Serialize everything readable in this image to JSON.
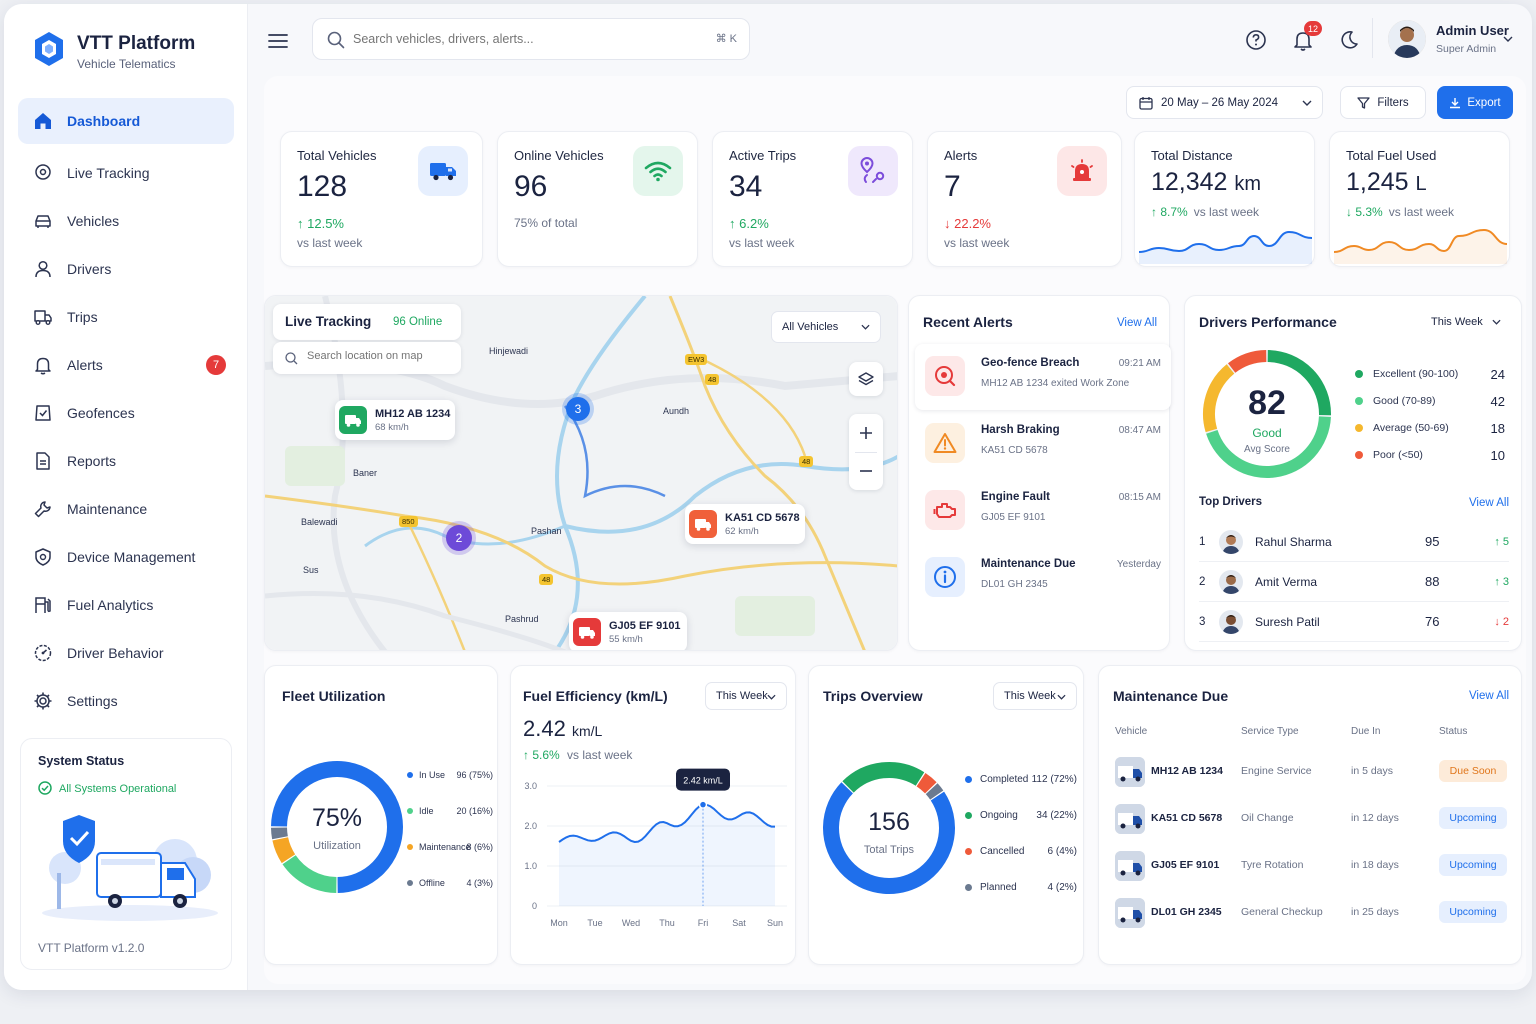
{
  "brand": {
    "name": "VTT Platform",
    "tagline": "Vehicle Telematics",
    "version": "VTT Platform v1.2.0"
  },
  "colors": {
    "primary": "#1559d6",
    "success": "#1fa861",
    "danger": "#e53a3a",
    "warning": "#f59e0b"
  },
  "nav": [
    {
      "label": "Dashboard",
      "icon": "home-icon",
      "active": true
    },
    {
      "label": "Live Tracking",
      "icon": "location-pin-icon"
    },
    {
      "label": "Vehicles",
      "icon": "car-icon"
    },
    {
      "label": "Drivers",
      "icon": "user-icon"
    },
    {
      "label": "Trips",
      "icon": "map-icon"
    },
    {
      "label": "Alerts",
      "icon": "bell-icon",
      "badge": "7"
    },
    {
      "label": "Geofences",
      "icon": "geofence-icon"
    },
    {
      "label": "Reports",
      "icon": "document-icon"
    },
    {
      "label": "Maintenance",
      "icon": "wrench-icon"
    },
    {
      "label": "Device Management",
      "icon": "shield-icon"
    },
    {
      "label": "Fuel Analytics",
      "icon": "fuel-icon"
    },
    {
      "label": "Driver Behavior",
      "icon": "gauge-icon"
    },
    {
      "label": "Settings",
      "icon": "gear-icon"
    }
  ],
  "system_status": {
    "title": "System Status",
    "status": "All Systems Operational"
  },
  "header": {
    "search_placeholder": "Search vehicles, drivers, alerts...",
    "shortcut": "⌘ K",
    "notifications": "12",
    "user_name": "Admin User",
    "user_role": "Super Admin"
  },
  "toolbar": {
    "date_range": "20 May – 26 May 2024",
    "filters": "Filters",
    "export": "Export"
  },
  "stats": [
    {
      "label": "Total Vehicles",
      "value": "128",
      "change": "12.5%",
      "sub": "vs last week",
      "dir": "up",
      "icon": "truck-icon"
    },
    {
      "label": "Online Vehicles",
      "value": "96",
      "sub": "75% of total",
      "icon": "wifi-icon"
    },
    {
      "label": "Active Trips",
      "value": "34",
      "change": "6.2%",
      "sub": "vs last week",
      "dir": "up",
      "icon": "route-icon"
    },
    {
      "label": "Alerts",
      "value": "7",
      "change": "22.2%",
      "sub": "vs last week",
      "dir": "down",
      "icon": "siren-icon"
    },
    {
      "label": "Total Distance",
      "value": "12,342",
      "unit": "km",
      "change": "8.7%",
      "sub": "vs last week",
      "dir": "up"
    },
    {
      "label": "Total Fuel Used",
      "value": "1,245",
      "unit": "L",
      "change": "5.3%",
      "sub": "vs last week",
      "dir": "down"
    }
  ],
  "live_tracking": {
    "title": "Live Tracking",
    "online": "96 Online",
    "search_placeholder": "Search location on map",
    "filter": "All Vehicles",
    "places": [
      "Hinjewadi",
      "Aundh",
      "Baner",
      "Balewadi",
      "Pashan",
      "Sus",
      "Pashrud"
    ],
    "road_labels": [
      "EW3",
      "48",
      "48",
      "850",
      "48",
      "48"
    ],
    "clusters": [
      "3",
      "2"
    ],
    "vehicles": [
      {
        "plate": "MH12 AB 1234",
        "speed": "68 km/h",
        "color": "#1fa861"
      },
      {
        "plate": "KA51 CD 5678",
        "speed": "62 km/h",
        "color": "#f0603a"
      },
      {
        "plate": "GJ05 EF 9101",
        "speed": "55 km/h",
        "color": "#e53a3a"
      }
    ]
  },
  "recent_alerts": {
    "title": "Recent Alerts",
    "view_all": "View All",
    "items": [
      {
        "title": "Geo-fence Breach",
        "sub": "MH12 AB 1234 exited Work Zone",
        "time": "09:21 AM",
        "icon": "geofence-alert-icon"
      },
      {
        "title": "Harsh Braking",
        "sub": "KA51 CD 5678",
        "time": "08:47 AM",
        "icon": "warning-icon"
      },
      {
        "title": "Engine Fault",
        "sub": "GJ05 EF 9101",
        "time": "08:15 AM",
        "icon": "engine-icon"
      },
      {
        "title": "Maintenance Due",
        "sub": "DL01 GH 2345",
        "time": "Yesterday",
        "icon": "info-icon"
      }
    ]
  },
  "drivers_performance": {
    "title": "Drivers Performance",
    "period": "This Week",
    "score": "82",
    "score_label": "Good",
    "score_sub": "Avg Score",
    "legend": [
      {
        "label": "Excellent (90-100)",
        "value": "24",
        "color": "#1fa861"
      },
      {
        "label": "Good (70-89)",
        "value": "42",
        "color": "#4fd18b"
      },
      {
        "label": "Average (50-69)",
        "value": "18",
        "color": "#f5b82e"
      },
      {
        "label": "Poor (<50)",
        "value": "10",
        "color": "#ef5a3a"
      }
    ],
    "top_title": "Top Drivers",
    "view_all": "View All",
    "top": [
      {
        "rank": "1",
        "name": "Rahul Sharma",
        "score": "95",
        "delta": "5",
        "dir": "up"
      },
      {
        "rank": "2",
        "name": "Amit Verma",
        "score": "88",
        "delta": "3",
        "dir": "up"
      },
      {
        "rank": "3",
        "name": "Suresh Patil",
        "score": "76",
        "delta": "2",
        "dir": "down"
      }
    ]
  },
  "fleet_utilization": {
    "title": "Fleet Utilization",
    "center": "75%",
    "center_label": "Utilization",
    "legend": [
      {
        "label": "In Use",
        "value": "96 (75%)",
        "color": "#1f6feb"
      },
      {
        "label": "Idle",
        "value": "20 (16%)",
        "color": "#4fd18b"
      },
      {
        "label": "Maintenance",
        "value": "8 (6%)",
        "color": "#f5a524"
      },
      {
        "label": "Offline",
        "value": "4 (3%)",
        "color": "#6b7a90"
      }
    ]
  },
  "fuel_efficiency": {
    "title": "Fuel Efficiency (km/L)",
    "period": "This Week",
    "value": "2.42",
    "unit": "km/L",
    "change": "5.6%",
    "sub": "vs last week",
    "tooltip": "2.42 km/L"
  },
  "trips_overview": {
    "title": "Trips Overview",
    "period": "This Week",
    "center": "156",
    "center_label": "Total Trips",
    "legend": [
      {
        "label": "Completed",
        "value": "112 (72%)",
        "color": "#1f6feb"
      },
      {
        "label": "Ongoing",
        "value": "34 (22%)",
        "color": "#1fa861"
      },
      {
        "label": "Cancelled",
        "value": "6 (4%)",
        "color": "#ef5a3a"
      },
      {
        "label": "Planned",
        "value": "4 (2%)",
        "color": "#6b7a90"
      }
    ]
  },
  "maintenance_due": {
    "title": "Maintenance Due",
    "view_all": "View All",
    "columns": [
      "Vehicle",
      "Service Type",
      "Due In",
      "Status"
    ],
    "rows": [
      {
        "vehicle": "MH12 AB 1234",
        "service": "Engine Service",
        "due": "in 5 days",
        "status": "Due Soon"
      },
      {
        "vehicle": "KA51 CD 5678",
        "service": "Oil Change",
        "due": "in 12 days",
        "status": "Upcoming"
      },
      {
        "vehicle": "GJ05 EF 9101",
        "service": "Tyre Rotation",
        "due": "in 18 days",
        "status": "Upcoming"
      },
      {
        "vehicle": "DL01 GH 2345",
        "service": "General Checkup",
        "due": "in 25 days",
        "status": "Upcoming"
      }
    ]
  },
  "chart_data": [
    {
      "type": "pie",
      "title": "Fleet Utilization",
      "categories": [
        "In Use",
        "Idle",
        "Maintenance",
        "Offline"
      ],
      "values": [
        96,
        20,
        8,
        4
      ]
    },
    {
      "type": "line",
      "title": "Fuel Efficiency (km/L)",
      "categories": [
        "Mon",
        "Tue",
        "Wed",
        "Thu",
        "Fri",
        "Sat",
        "Sun"
      ],
      "y_ticks": [
        "0",
        "1.0",
        "2.0",
        "3.0"
      ],
      "ylim": [
        0,
        3
      ],
      "series": [
        {
          "values": [
            1.6,
            1.75,
            1.7,
            2.0,
            2.42,
            2.25,
            2.1
          ]
        }
      ]
    },
    {
      "type": "pie",
      "title": "Trips Overview",
      "categories": [
        "Completed",
        "Ongoing",
        "Cancelled",
        "Planned"
      ],
      "values": [
        112,
        34,
        6,
        4
      ]
    },
    {
      "type": "pie",
      "title": "Drivers Performance",
      "categories": [
        "Excellent (90-100)",
        "Good (70-89)",
        "Average (50-69)",
        "Poor (<50)"
      ],
      "values": [
        24,
        42,
        18,
        10
      ]
    }
  ]
}
